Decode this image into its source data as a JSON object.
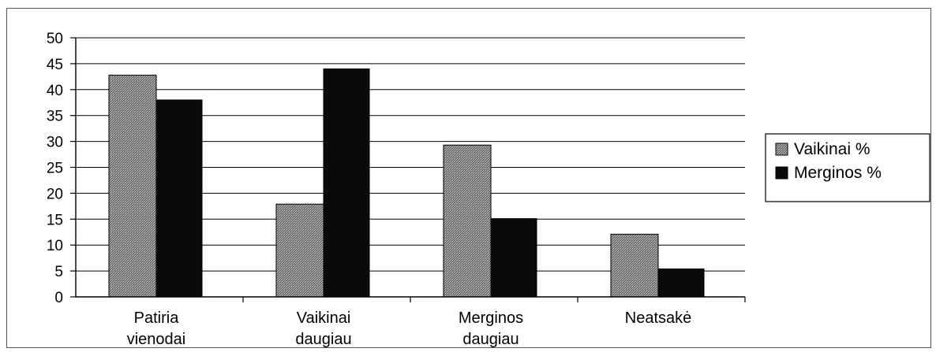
{
  "chart_data": {
    "type": "bar",
    "categories": [
      [
        "Patiria",
        "vienodai"
      ],
      [
        "Vaikinai",
        "daugiau"
      ],
      [
        "Merginos",
        "daugiau"
      ],
      [
        "Neatsakė"
      ]
    ],
    "series": [
      {
        "name": "Vaikinai %",
        "values": [
          42.8,
          17.9,
          29.3,
          12.1
        ],
        "color": "#8a8a8a"
      },
      {
        "name": "Merginos %",
        "values": [
          38.0,
          44.0,
          15.1,
          5.4
        ],
        "color": "#0a0a0a"
      }
    ],
    "ylim": [
      0,
      50
    ],
    "yticks": [
      0,
      5,
      10,
      15,
      20,
      25,
      30,
      35,
      40,
      45,
      50
    ],
    "grid": true,
    "legend": "right"
  }
}
